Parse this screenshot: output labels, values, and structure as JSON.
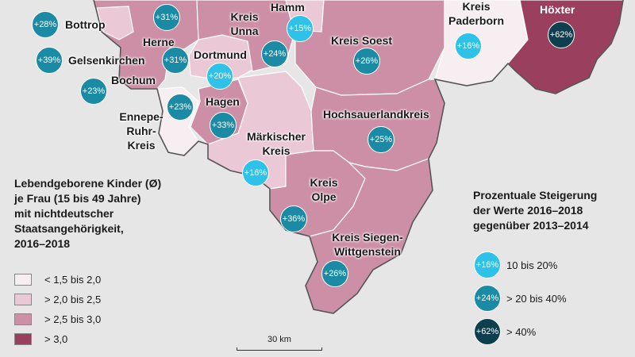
{
  "regions": {
    "bottrop": "Bottrop",
    "herne": "Herne",
    "gelsenkirchen": "Gelsenkirchen",
    "bochum": "Bochum",
    "dortmund": "Dortmund",
    "hagen": "Hagen",
    "ennepe_l1": "Ennepe-",
    "ennepe_l2": "Ruhr-",
    "ennepe_l3": "Kreis",
    "hamm": "Hamm",
    "unna_l1": "Kreis",
    "unna_l2": "Unna",
    "soest": "Kreis Soest",
    "paderborn_l1": "Kreis",
    "paderborn_l2": "Paderborn",
    "hoexter": "Höxter",
    "hochsauerland": "Hochsauerlandkreis",
    "maerkischer_l1": "Märkischer",
    "maerkischer_l2": "Kreis",
    "olpe_l1": "Kreis",
    "olpe_l2": "Olpe",
    "siegen_l1": "Kreis Siegen-",
    "siegen_l2": "Wittgenstein"
  },
  "bubbles": {
    "bottrop": "+28%",
    "herne": "+31%",
    "gelsenkirchen": "+39%",
    "gelsenkirchen2": "+31%",
    "bochum": "+23%",
    "dortmund": "+20%",
    "hagen_west": "+23%",
    "hagen": "+33%",
    "hamm": "+15%",
    "unna": "+24%",
    "soest": "+26%",
    "paderborn": "+16%",
    "hoexter": "+62%",
    "hochsauerland": "+25%",
    "maerkischer": "+16%",
    "olpe": "+36%",
    "siegen": "+26%"
  },
  "legend_left": {
    "title_l1": "Lebendgeborene Kinder (Ø)",
    "title_l2": "je Frau (15 bis 49 Jahre)",
    "title_l3": "mit nichtdeutscher",
    "title_l4": "Staatsangehörigkeit,",
    "title_l5": "2016–2018",
    "items": [
      {
        "label": "< 1,5 bis 2,0",
        "color": "#f7eef1"
      },
      {
        "label": "> 2,0 bis 2,5",
        "color": "#ebc8d5"
      },
      {
        "label": "> 2,5 bis 3,0",
        "color": "#cd8fa5"
      },
      {
        "label": "> 3,0",
        "color": "#9a3f5e"
      }
    ]
  },
  "legend_right": {
    "title_l1": "Prozentuale Steigerung",
    "title_l2": "der Werte 2016–2018",
    "title_l3": "gegenüber 2013–2014",
    "items": [
      {
        "sample": "+16%",
        "label": "10 bis 20%",
        "color": "#2fc2e8"
      },
      {
        "sample": "+24%",
        "label": "> 20 bis 40%",
        "color": "#1b8aa5"
      },
      {
        "sample": "+62%",
        "label": "> 40%",
        "color": "#0e3f4f"
      }
    ]
  },
  "scale": "30 km"
}
